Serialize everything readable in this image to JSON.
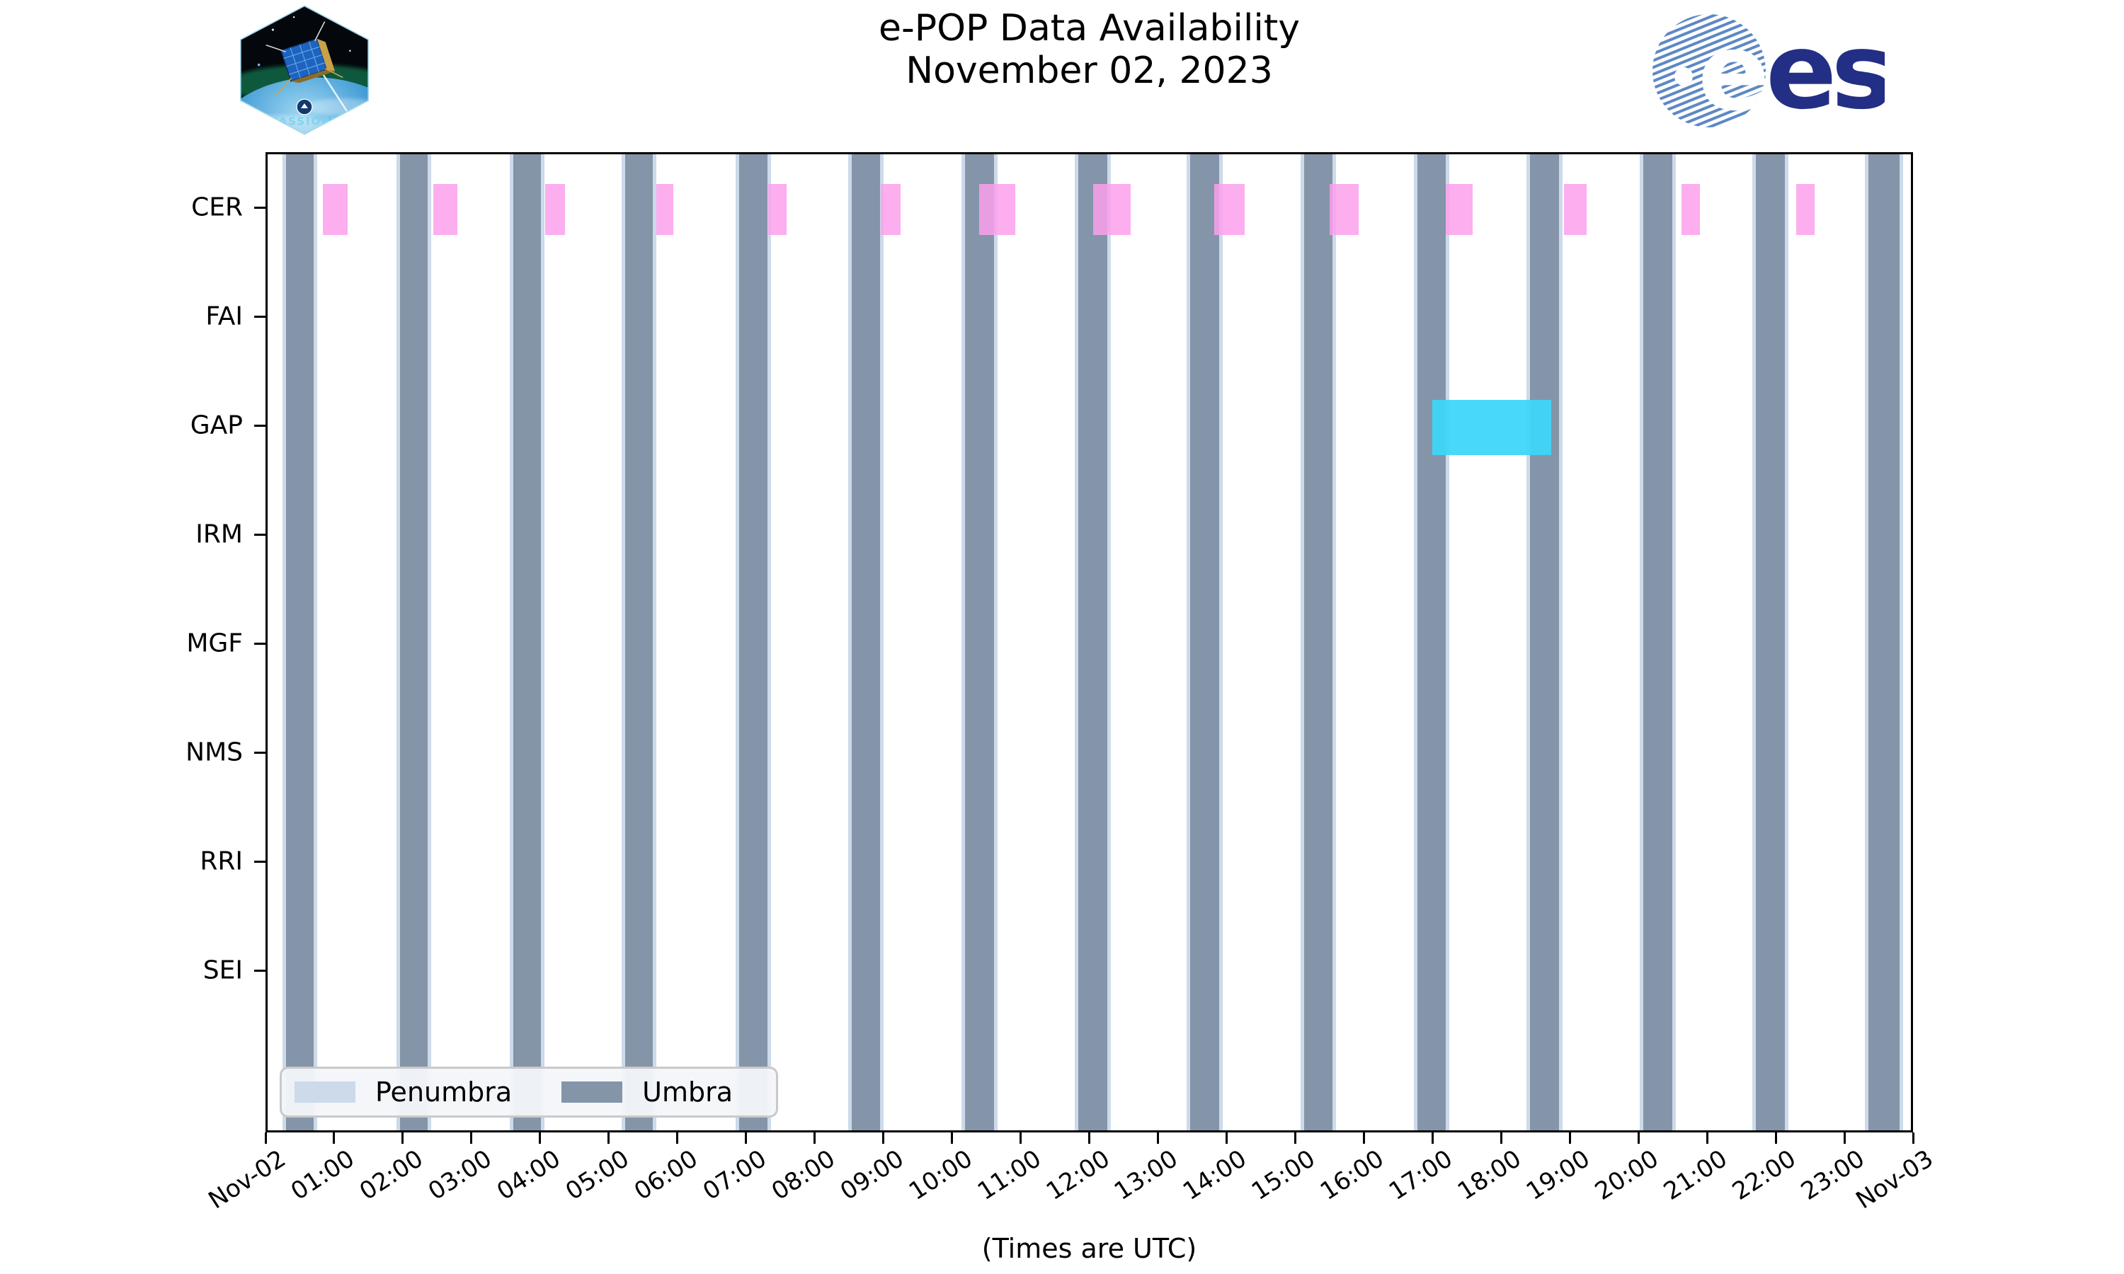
{
  "header": {
    "title_line1": "e-POP Data Availability",
    "title_line2": "November 02, 2023",
    "cassiope_patch_label": "CASSIOPE",
    "esa_wordmark": "esa"
  },
  "footer": {
    "xlabel": "(Times are UTC)"
  },
  "legend": {
    "penumbra_label": "Penumbra",
    "umbra_label": "Umbra"
  },
  "colors": {
    "umbra": "#8495a9",
    "penumbra": "#ccdaea",
    "cer_bar": "rgba(252,160,236,0.85)",
    "gap_bar": "rgba(62,214,248,0.95)",
    "legend_background": "#f3f5fa",
    "legend_border": "#c9c9c9",
    "esa_navy": "#232e85",
    "esa_globe_blue": "#5c87c5",
    "cassiope_text_blue": "#7fd4f0"
  },
  "chart_data": {
    "type": "timeline",
    "title": "e-POP Data Availability",
    "subtitle": "November 02, 2023",
    "xlabel": "(Times are UTC)",
    "x_range_hours": [
      0,
      24
    ],
    "x_tick_labels": [
      "Nov-02",
      "01:00",
      "02:00",
      "03:00",
      "04:00",
      "05:00",
      "06:00",
      "07:00",
      "08:00",
      "09:00",
      "10:00",
      "11:00",
      "12:00",
      "13:00",
      "14:00",
      "15:00",
      "16:00",
      "17:00",
      "18:00",
      "19:00",
      "20:00",
      "21:00",
      "22:00",
      "23:00",
      "Nov-03"
    ],
    "rows": [
      "CER",
      "FAI",
      "GAP",
      "IRM",
      "MGF",
      "NMS",
      "RRI",
      "SEI"
    ],
    "legend_entries": [
      {
        "label": "Penumbra",
        "color": "#ccdaea"
      },
      {
        "label": "Umbra",
        "color": "#8495a9"
      }
    ],
    "umbra_intervals_hours": [
      [
        0.27,
        0.67
      ],
      [
        1.93,
        2.33
      ],
      [
        3.58,
        3.98
      ],
      [
        5.21,
        5.61
      ],
      [
        6.87,
        7.28
      ],
      [
        8.51,
        8.92
      ],
      [
        10.16,
        10.58
      ],
      [
        11.81,
        12.23
      ],
      [
        13.44,
        13.86
      ],
      [
        15.1,
        15.51
      ],
      [
        16.75,
        17.16
      ],
      [
        18.39,
        18.81
      ],
      [
        20.04,
        20.46
      ],
      [
        21.68,
        22.1
      ],
      [
        23.32,
        23.77
      ]
    ],
    "penumbra_pad_hours": 0.05,
    "data_series": [
      {
        "row": "CER",
        "color": "rgba(252,160,236,0.85)",
        "intervals_hours": [
          [
            0.8,
            1.17
          ],
          [
            2.41,
            2.76
          ],
          [
            4.04,
            4.33
          ],
          [
            5.66,
            5.91
          ],
          [
            7.29,
            7.56
          ],
          [
            8.93,
            9.22
          ],
          [
            10.37,
            10.89
          ],
          [
            12.03,
            12.57
          ],
          [
            13.79,
            14.23
          ],
          [
            15.47,
            15.89
          ],
          [
            17.16,
            17.55
          ],
          [
            18.88,
            19.21
          ],
          [
            20.6,
            20.86
          ],
          [
            22.27,
            22.54
          ],
          [
            23.95,
            24.0
          ]
        ]
      },
      {
        "row": "GAP",
        "color": "rgba(62,214,248,0.95)",
        "intervals_hours": [
          [
            16.97,
            18.7
          ]
        ]
      }
    ]
  }
}
